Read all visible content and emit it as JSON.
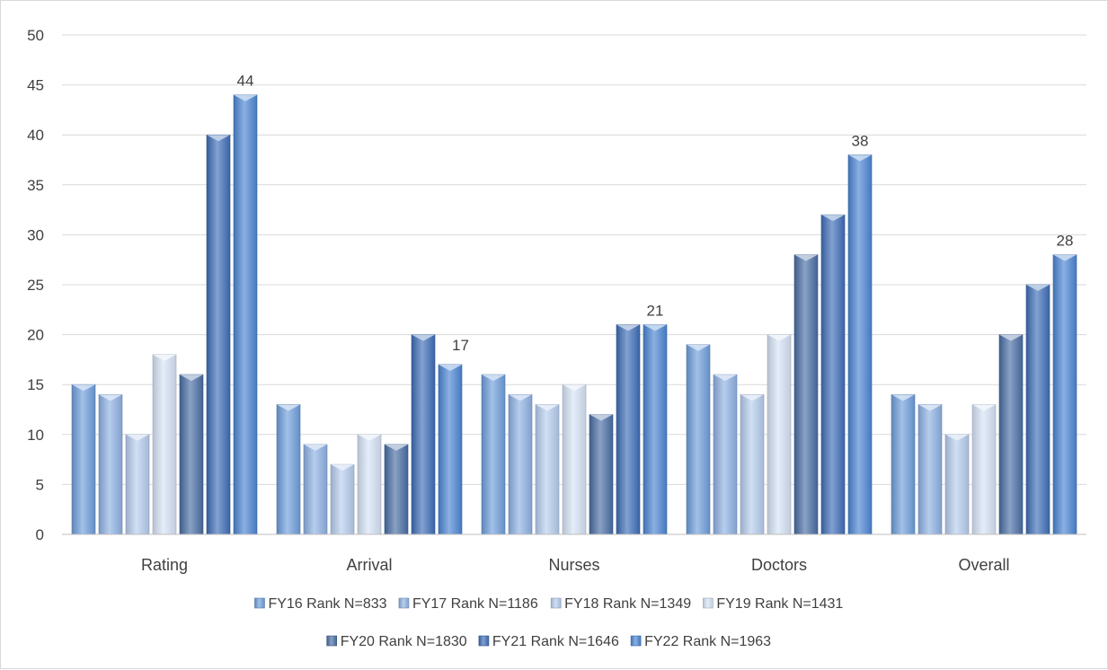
{
  "chart_data": {
    "type": "bar",
    "title": "",
    "xlabel": "",
    "ylabel": "",
    "ylim": [
      0,
      50
    ],
    "y_ticks": [
      "0",
      "5",
      "10",
      "15",
      "20",
      "25",
      "30",
      "35",
      "40",
      "45",
      "50"
    ],
    "grid": true,
    "legend_position": "bottom",
    "categories": [
      "Rating",
      "Arrival",
      "Nurses",
      "Doctors",
      "Overall"
    ],
    "series": [
      {
        "name": "FY16 Rank N=833",
        "values": [
          15,
          13,
          16,
          19,
          14
        ],
        "color": "#6f9fdc"
      },
      {
        "name": "FY17 Rank N=1186",
        "values": [
          14,
          9,
          14,
          16,
          13
        ],
        "color": "#8fb2e4"
      },
      {
        "name": "FY18 Rank N=1349",
        "values": [
          10,
          7,
          13,
          14,
          10
        ],
        "color": "#b6cdee"
      },
      {
        "name": "FY19 Rank N=1431",
        "values": [
          18,
          10,
          15,
          20,
          13
        ],
        "color": "#d6e3f6"
      },
      {
        "name": "FY20 Rank N=1830",
        "values": [
          16,
          9,
          12,
          28,
          20
        ],
        "color": "#4a6fa5"
      },
      {
        "name": "FY21 Rank N=1646",
        "values": [
          40,
          20,
          21,
          32,
          25
        ],
        "color": "#3f6fb8"
      },
      {
        "name": "FY22 Rank N=1963",
        "values": [
          44,
          17,
          21,
          38,
          28
        ],
        "color": "#4c86d4"
      }
    ],
    "data_labels": [
      {
        "series_index": 6,
        "category_index": 0,
        "text": "44"
      },
      {
        "series_index": 6,
        "category_index": 1,
        "text": "17"
      },
      {
        "series_index": 6,
        "category_index": 2,
        "text": "21"
      },
      {
        "series_index": 6,
        "category_index": 3,
        "text": "38"
      },
      {
        "series_index": 6,
        "category_index": 4,
        "text": "28"
      }
    ]
  }
}
